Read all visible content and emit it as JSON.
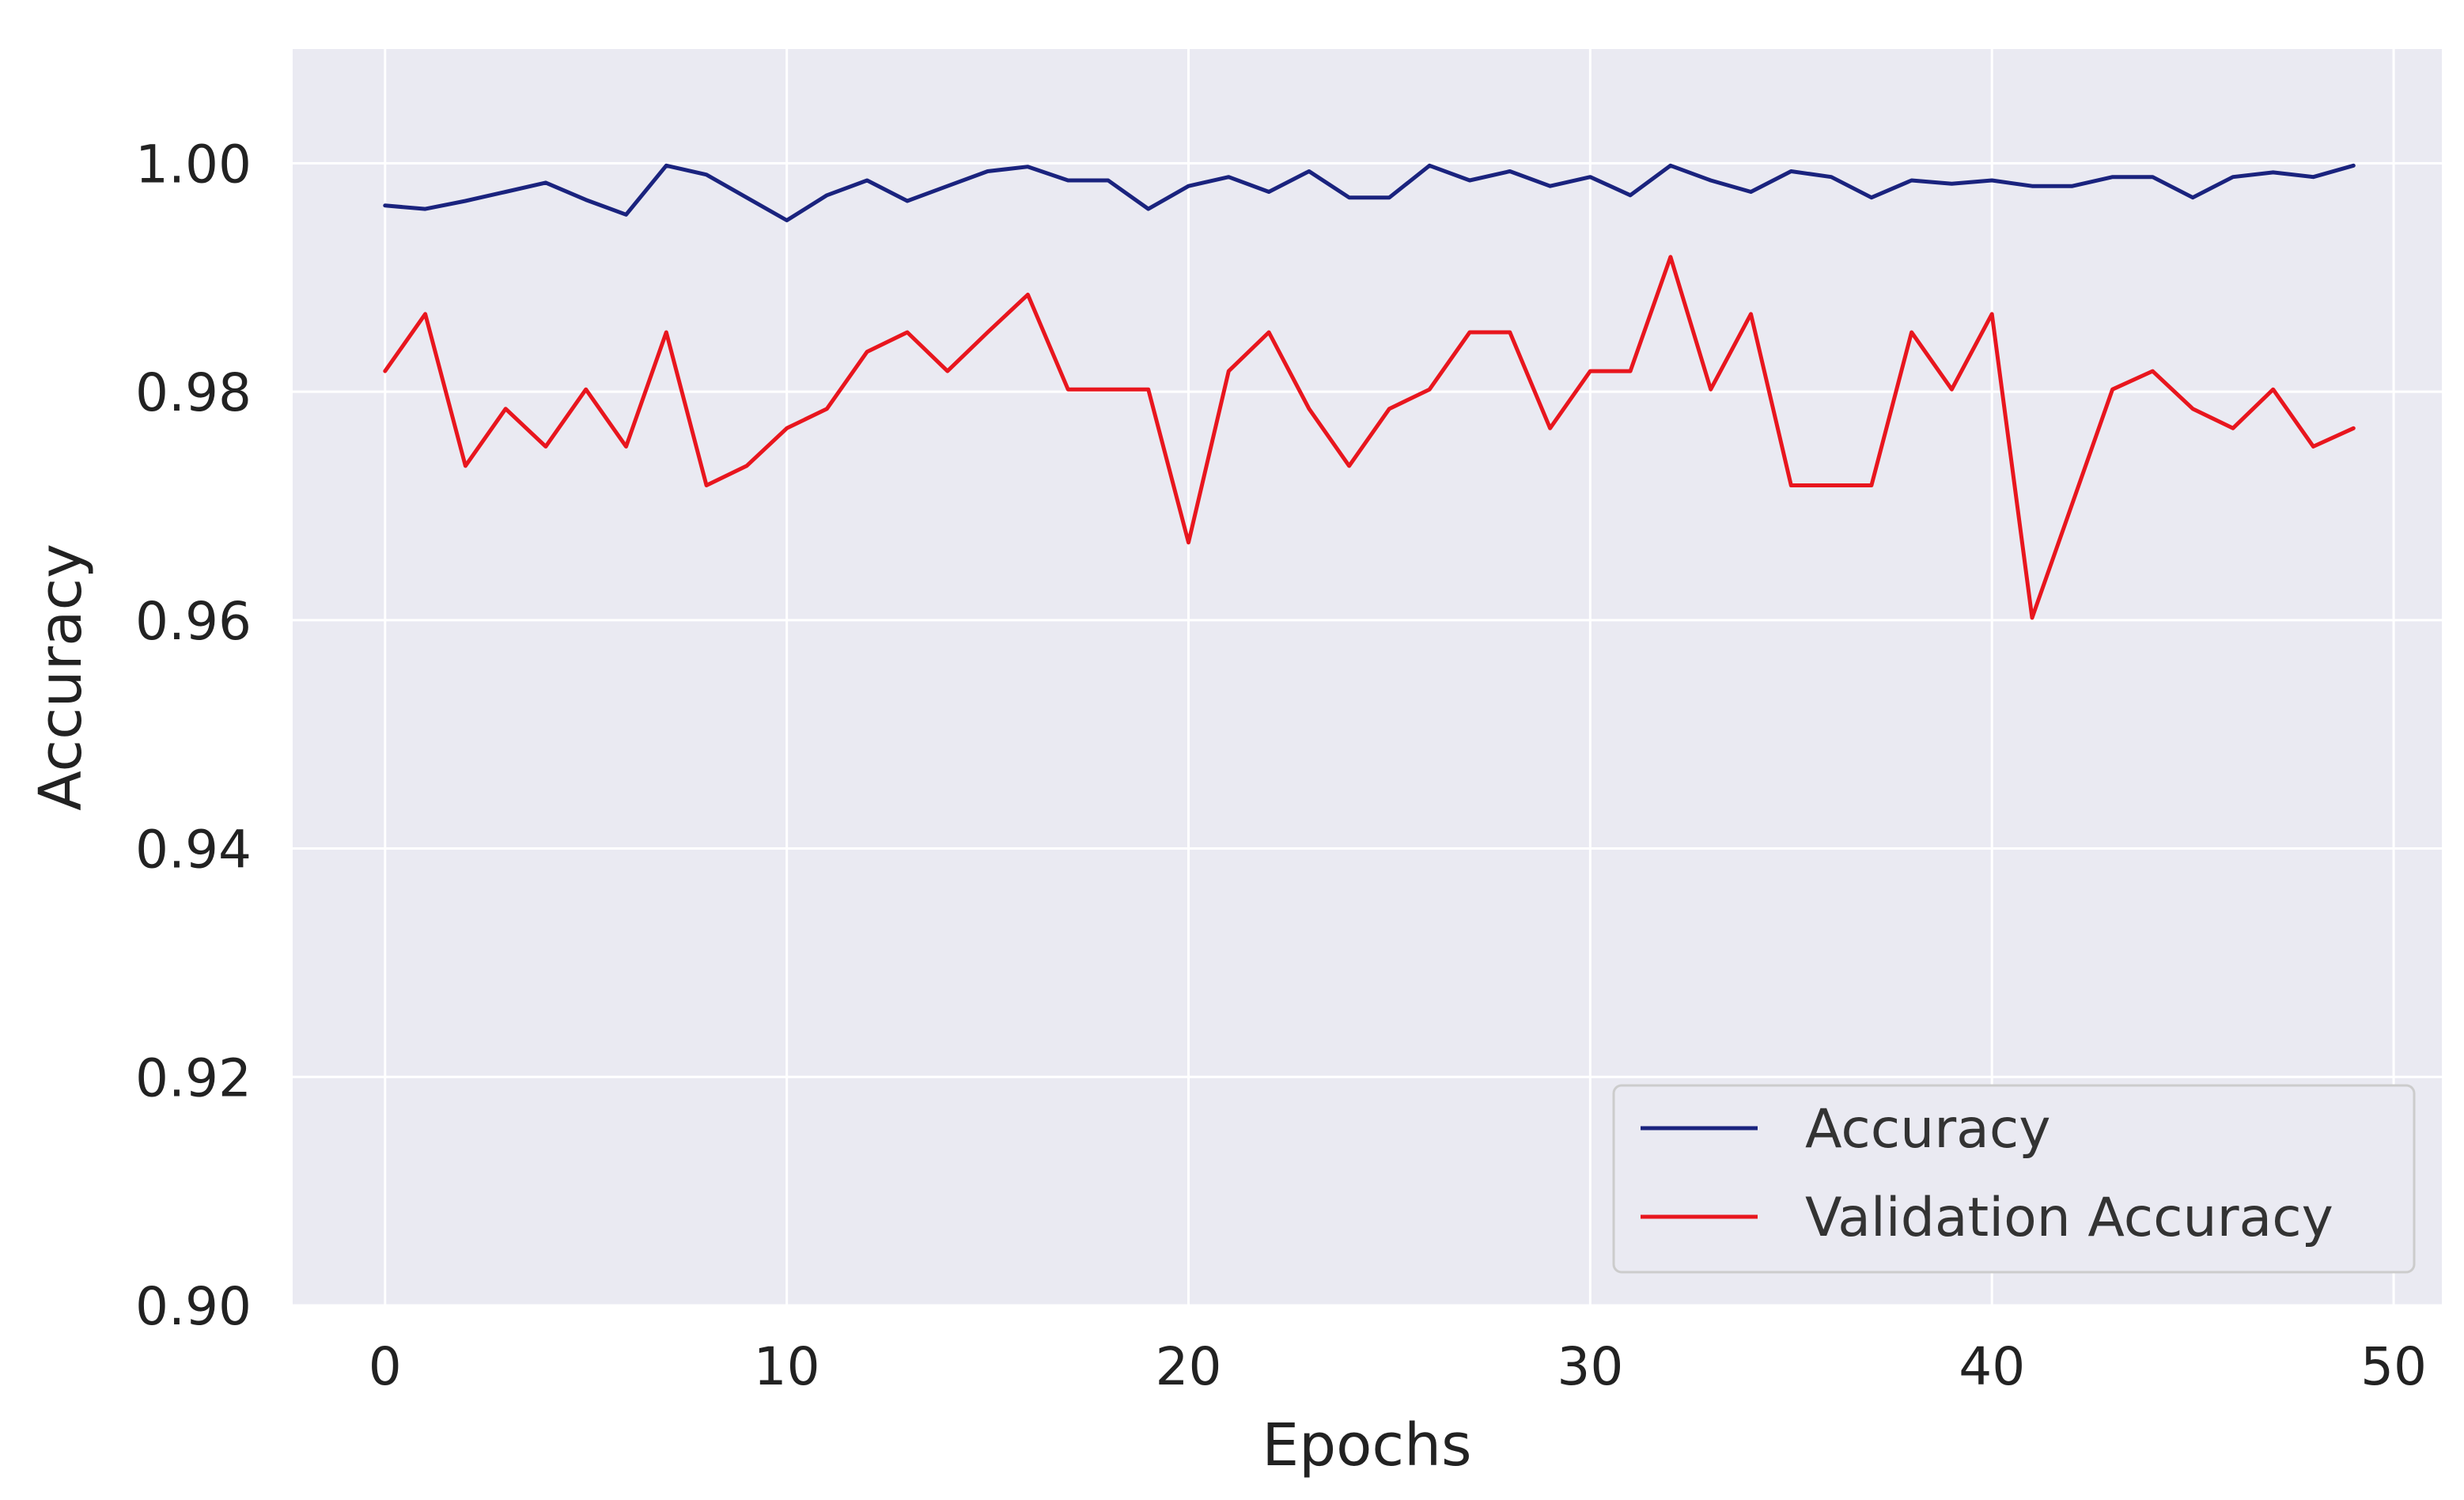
{
  "chart_data": {
    "type": "line",
    "xlabel": "Epochs",
    "ylabel": "Accuracy",
    "xlim": [
      -2.3,
      51.2
    ],
    "ylim": [
      0.9,
      1.01
    ],
    "xticks": [
      0,
      10,
      20,
      30,
      40,
      50
    ],
    "yticks": [
      0.9,
      0.92,
      0.94,
      0.96,
      0.98,
      1.0
    ],
    "xtick_labels": [
      "0",
      "10",
      "20",
      "30",
      "40",
      "50"
    ],
    "ytick_labels": [
      "0.90",
      "0.92",
      "0.94",
      "0.96",
      "0.98",
      "1.00"
    ],
    "grid": true,
    "legend_position": "lower-right",
    "x": [
      0,
      1,
      2,
      3,
      4,
      5,
      6,
      7,
      8,
      9,
      10,
      11,
      12,
      13,
      14,
      15,
      16,
      17,
      18,
      19,
      20,
      21,
      22,
      23,
      24,
      25,
      26,
      27,
      28,
      29,
      30,
      31,
      32,
      33,
      34,
      35,
      36,
      37,
      38,
      39,
      40,
      41,
      42,
      43,
      44,
      45,
      46,
      47,
      48,
      49
    ],
    "series": [
      {
        "name": "Accuracy",
        "color": "#1a237e",
        "values": [
          0.9963,
          0.996,
          0.9967,
          0.9975,
          0.9983,
          0.9968,
          0.9955,
          0.9998,
          0.999,
          0.997,
          0.995,
          0.9972,
          0.9985,
          0.9967,
          0.998,
          0.9993,
          0.9997,
          0.9985,
          0.9985,
          0.996,
          0.998,
          0.9988,
          0.9975,
          0.9993,
          0.997,
          0.997,
          0.9998,
          0.9985,
          0.9993,
          0.998,
          0.9988,
          0.9972,
          0.9998,
          0.9985,
          0.9975,
          0.9993,
          0.9988,
          0.997,
          0.9985,
          0.9982,
          0.9985,
          0.998,
          0.998,
          0.9988,
          0.9988,
          0.997,
          0.9988,
          0.9992,
          0.9988,
          0.9998
        ]
      },
      {
        "name": "Validation Accuracy",
        "color": "#e8161e",
        "values": [
          0.9818,
          0.9868,
          0.9735,
          0.9785,
          0.9752,
          0.9802,
          0.9752,
          0.9852,
          0.9718,
          0.9735,
          0.9768,
          0.9785,
          0.9835,
          0.9852,
          0.9818,
          0.9852,
          0.9885,
          0.9802,
          0.9802,
          0.9802,
          0.9668,
          0.9818,
          0.9852,
          0.9785,
          0.9735,
          0.9785,
          0.9802,
          0.9852,
          0.9852,
          0.9768,
          0.9818,
          0.9818,
          0.9918,
          0.9802,
          0.9868,
          0.9718,
          0.9718,
          0.9718,
          0.9852,
          0.9802,
          0.9868,
          0.9602,
          0.9702,
          0.9802,
          0.9818,
          0.9785,
          0.9768,
          0.9802,
          0.9752,
          0.9768
        ]
      }
    ]
  }
}
